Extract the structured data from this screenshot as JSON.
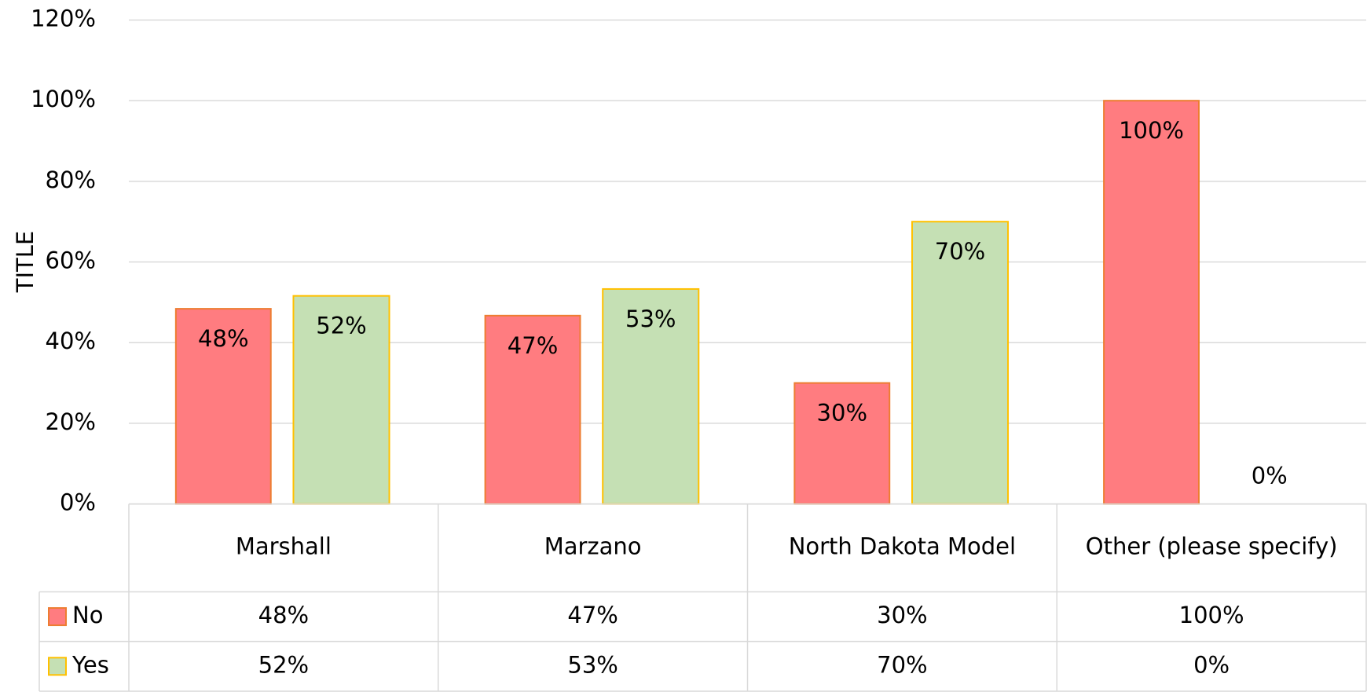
{
  "chart_data": {
    "type": "bar",
    "y_axis_label": "TITLE",
    "categories": [
      "Marshall",
      "Marzano",
      "North Dakota Model",
      "Other (please specify)"
    ],
    "series": [
      {
        "name": "No",
        "color": "#ff7c80",
        "edge": "#ed7d31",
        "values": [
          48.4,
          46.7,
          30,
          100
        ],
        "value_labels": [
          "48%",
          "47%",
          "30%",
          "100%"
        ]
      },
      {
        "name": "Yes",
        "color": "#c5e0b4",
        "edge": "#ffc000",
        "values": [
          51.6,
          53.3,
          70,
          0
        ],
        "value_labels": [
          "52%",
          "53%",
          "70%",
          "0%"
        ]
      }
    ],
    "ylim": [
      0,
      120
    ],
    "yticks": [
      {
        "value": 0,
        "label": "0%"
      },
      {
        "value": 20,
        "label": "20%"
      },
      {
        "value": 40,
        "label": "40%"
      },
      {
        "value": 60,
        "label": "60%"
      },
      {
        "value": 80,
        "label": "80%"
      },
      {
        "value": 100,
        "label": "100%"
      },
      {
        "value": 120,
        "label": "120%"
      }
    ],
    "grid": true,
    "legend": "table"
  }
}
